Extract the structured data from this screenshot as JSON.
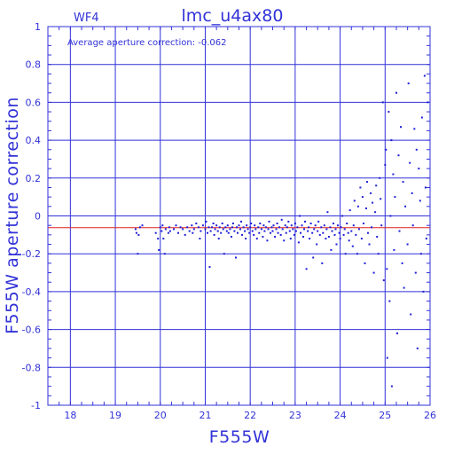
{
  "header": {
    "panel_label": "WF4",
    "title": "lmc_u4ax80"
  },
  "annotation": "Average aperture correction: -0.062",
  "axes": {
    "xlabel": "F555W",
    "ylabel": "F555W aperture correction",
    "xlim": [
      17.5,
      26
    ],
    "ylim": [
      -1,
      1
    ],
    "x_ticks": [
      "18",
      "19",
      "20",
      "21",
      "22",
      "23",
      "24",
      "25",
      "26"
    ],
    "y_ticks": [
      "1",
      "0.8",
      "0.6",
      "0.4",
      "0.2",
      "0",
      "-0.2",
      "-0.4",
      "-0.6",
      "-0.8",
      "-1"
    ]
  },
  "colors": {
    "axis": "#3232d8",
    "points": "#1f1fd8",
    "reference_line": "#e0201e",
    "background": "#ffffff"
  },
  "chart_data": {
    "type": "scatter",
    "title": "lmc_u4ax80",
    "xlabel": "F555W",
    "ylabel": "F555W aperture correction",
    "xlim": [
      17.5,
      26
    ],
    "ylim": [
      -1,
      1
    ],
    "grid": true,
    "reference_line": {
      "y": -0.062
    },
    "series": [
      {
        "points": [
          [
            19.45,
            -0.07
          ],
          [
            19.47,
            -0.09
          ],
          [
            19.5,
            -0.2
          ],
          [
            19.52,
            -0.1
          ],
          [
            19.55,
            -0.06
          ],
          [
            19.6,
            -0.05
          ],
          [
            19.9,
            -0.09
          ],
          [
            19.95,
            -0.12
          ],
          [
            19.97,
            -0.18
          ],
          [
            20.0,
            -0.06
          ],
          [
            20.03,
            -0.08
          ],
          [
            20.05,
            -0.05
          ],
          [
            20.07,
            -0.12
          ],
          [
            20.1,
            -0.2
          ],
          [
            20.12,
            -0.07
          ],
          [
            20.18,
            -0.09
          ],
          [
            20.2,
            -0.06
          ],
          [
            20.22,
            -0.08
          ],
          [
            20.3,
            -0.07
          ],
          [
            20.35,
            -0.05
          ],
          [
            20.4,
            -0.09
          ],
          [
            20.45,
            -0.06
          ],
          [
            20.5,
            -0.07
          ],
          [
            20.55,
            -0.1
          ],
          [
            20.6,
            -0.06
          ],
          [
            20.65,
            -0.08
          ],
          [
            20.7,
            -0.05
          ],
          [
            20.72,
            -0.09
          ],
          [
            20.75,
            -0.07
          ],
          [
            20.8,
            -0.04
          ],
          [
            20.85,
            -0.06
          ],
          [
            20.88,
            -0.12
          ],
          [
            20.9,
            -0.08
          ],
          [
            20.95,
            -0.05
          ],
          [
            21.0,
            -0.07
          ],
          [
            21.02,
            -0.03
          ],
          [
            21.05,
            -0.09
          ],
          [
            21.08,
            -0.06
          ],
          [
            21.1,
            -0.27
          ],
          [
            21.12,
            -0.08
          ],
          [
            21.15,
            -0.06
          ],
          [
            21.18,
            -0.04
          ],
          [
            21.2,
            -0.1
          ],
          [
            21.22,
            -0.07
          ],
          [
            21.25,
            -0.05
          ],
          [
            21.28,
            -0.08
          ],
          [
            21.3,
            -0.12
          ],
          [
            21.32,
            -0.06
          ],
          [
            21.35,
            -0.09
          ],
          [
            21.38,
            -0.04
          ],
          [
            21.4,
            -0.07
          ],
          [
            21.42,
            -0.2
          ],
          [
            21.45,
            -0.06
          ],
          [
            21.48,
            -0.08
          ],
          [
            21.5,
            -0.05
          ],
          [
            21.52,
            -0.09
          ],
          [
            21.55,
            -0.07
          ],
          [
            21.58,
            -0.11
          ],
          [
            21.6,
            -0.06
          ],
          [
            21.62,
            -0.04
          ],
          [
            21.65,
            -0.08
          ],
          [
            21.68,
            -0.22
          ],
          [
            21.7,
            -0.06
          ],
          [
            21.72,
            -0.09
          ],
          [
            21.75,
            -0.05
          ],
          [
            21.78,
            -0.07
          ],
          [
            21.8,
            -0.03
          ],
          [
            21.82,
            -0.1
          ],
          [
            21.85,
            -0.06
          ],
          [
            21.88,
            -0.08
          ],
          [
            21.9,
            -0.12
          ],
          [
            21.92,
            -0.05
          ],
          [
            21.95,
            -0.07
          ],
          [
            21.98,
            -0.09
          ],
          [
            22.0,
            -0.06
          ],
          [
            22.02,
            -0.04
          ],
          [
            22.05,
            -0.08
          ],
          [
            22.08,
            -0.1
          ],
          [
            22.1,
            -0.05
          ],
          [
            22.12,
            -0.07
          ],
          [
            22.15,
            -0.12
          ],
          [
            22.18,
            -0.06
          ],
          [
            22.2,
            -0.09
          ],
          [
            22.22,
            -0.04
          ],
          [
            22.25,
            -0.07
          ],
          [
            22.28,
            -0.11
          ],
          [
            22.3,
            -0.05
          ],
          [
            22.32,
            -0.08
          ],
          [
            22.35,
            -0.06
          ],
          [
            22.38,
            -0.13
          ],
          [
            22.4,
            -0.07
          ],
          [
            22.42,
            -0.03
          ],
          [
            22.45,
            -0.09
          ],
          [
            22.48,
            -0.06
          ],
          [
            22.5,
            -0.08
          ],
          [
            22.52,
            -0.05
          ],
          [
            22.55,
            -0.11
          ],
          [
            22.58,
            -0.07
          ],
          [
            22.6,
            -0.04
          ],
          [
            22.62,
            -0.09
          ],
          [
            22.65,
            -0.06
          ],
          [
            22.68,
            -0.1
          ],
          [
            22.7,
            -0.02
          ],
          [
            22.72,
            -0.07
          ],
          [
            22.75,
            -0.13
          ],
          [
            22.78,
            -0.05
          ],
          [
            22.8,
            -0.09
          ],
          [
            22.82,
            -0.06
          ],
          [
            22.85,
            -0.03
          ],
          [
            22.88,
            -0.08
          ],
          [
            22.9,
            -0.12
          ],
          [
            22.92,
            -0.05
          ],
          [
            22.95,
            -0.07
          ],
          [
            22.98,
            -0.1
          ],
          [
            23.0,
            -0.04
          ],
          [
            23.02,
            -0.08
          ],
          [
            23.05,
            -0.06
          ],
          [
            23.08,
            -0.14
          ],
          [
            23.1,
            0.0
          ],
          [
            23.12,
            -0.09
          ],
          [
            23.15,
            -0.05
          ],
          [
            23.18,
            -0.11
          ],
          [
            23.2,
            -0.07
          ],
          [
            23.22,
            -0.03
          ],
          [
            23.25,
            -0.28
          ],
          [
            23.28,
            -0.08
          ],
          [
            23.3,
            -0.06
          ],
          [
            23.32,
            -0.12
          ],
          [
            23.35,
            -0.04
          ],
          [
            23.38,
            -0.09
          ],
          [
            23.4,
            -0.22
          ],
          [
            23.42,
            -0.07
          ],
          [
            23.45,
            -0.05
          ],
          [
            23.48,
            -0.15
          ],
          [
            23.5,
            -0.08
          ],
          [
            23.52,
            -0.03
          ],
          [
            23.55,
            -0.1
          ],
          [
            23.58,
            -0.06
          ],
          [
            23.6,
            -0.25
          ],
          [
            23.62,
            -0.09
          ],
          [
            23.65,
            -0.05
          ],
          [
            23.68,
            -0.12
          ],
          [
            23.7,
            -0.07
          ],
          [
            23.72,
            0.02
          ],
          [
            23.75,
            -0.11
          ],
          [
            23.78,
            -0.06
          ],
          [
            23.8,
            -0.18
          ],
          [
            23.82,
            -0.08
          ],
          [
            23.85,
            -0.04
          ],
          [
            23.88,
            -0.1
          ],
          [
            23.9,
            -0.07
          ],
          [
            23.92,
            -0.15
          ],
          [
            23.95,
            -0.05
          ],
          [
            23.98,
            -0.09
          ],
          [
            24.0,
            -0.12
          ],
          [
            24.02,
            -0.06
          ],
          [
            24.05,
            0.0
          ],
          [
            24.08,
            -0.1
          ],
          [
            24.1,
            -0.07
          ],
          [
            24.12,
            -0.2
          ],
          [
            24.15,
            -0.04
          ],
          [
            24.18,
            -0.09
          ],
          [
            24.2,
            -0.13
          ],
          [
            24.22,
            0.03
          ],
          [
            24.25,
            -0.08
          ],
          [
            24.28,
            -0.16
          ],
          [
            24.3,
            -0.05
          ],
          [
            24.32,
            0.08
          ],
          [
            24.35,
            -0.1
          ],
          [
            24.38,
            -0.2
          ],
          [
            24.4,
            0.05
          ],
          [
            24.42,
            -0.07
          ],
          [
            24.45,
            0.15
          ],
          [
            24.48,
            -0.12
          ],
          [
            24.5,
            0.1
          ],
          [
            24.52,
            -0.04
          ],
          [
            24.55,
            -0.25
          ],
          [
            24.58,
            0.04
          ],
          [
            24.6,
            0.18
          ],
          [
            24.62,
            -0.09
          ],
          [
            24.65,
            -0.15
          ],
          [
            24.68,
            0.12
          ],
          [
            24.7,
            -0.06
          ],
          [
            24.72,
            0.07
          ],
          [
            24.75,
            -0.3
          ],
          [
            24.78,
            0.02
          ],
          [
            24.8,
            0.16
          ],
          [
            24.82,
            -0.11
          ],
          [
            24.85,
            -0.2
          ],
          [
            24.88,
            0.2
          ],
          [
            24.9,
            0.09
          ],
          [
            24.92,
            -0.05
          ],
          [
            24.95,
            0.6
          ],
          [
            24.97,
            -0.34
          ],
          [
            25.0,
            0.27
          ],
          [
            25.02,
            0.35
          ],
          [
            25.04,
            -0.28
          ],
          [
            25.05,
            -0.75
          ],
          [
            25.08,
            0.55
          ],
          [
            25.1,
            -0.45
          ],
          [
            25.12,
            0.0
          ],
          [
            25.14,
            0.4
          ],
          [
            25.15,
            -0.9
          ],
          [
            25.18,
            0.22
          ],
          [
            25.2,
            -0.18
          ],
          [
            25.22,
            0.1
          ],
          [
            25.25,
            0.65
          ],
          [
            25.27,
            -0.62
          ],
          [
            25.3,
            0.32
          ],
          [
            25.32,
            -0.08
          ],
          [
            25.35,
            0.47
          ],
          [
            25.38,
            -0.25
          ],
          [
            25.4,
            0.18
          ],
          [
            25.42,
            -0.38
          ],
          [
            25.45,
            0.05
          ],
          [
            25.5,
            -0.15
          ],
          [
            25.52,
            0.7
          ],
          [
            25.55,
            0.28
          ],
          [
            25.57,
            -0.52
          ],
          [
            25.6,
            0.12
          ],
          [
            25.62,
            -0.05
          ],
          [
            25.65,
            0.46
          ],
          [
            25.68,
            -0.3
          ],
          [
            25.7,
            0.35
          ],
          [
            25.72,
            -0.7
          ],
          [
            25.75,
            0.25
          ],
          [
            25.78,
            0.08
          ],
          [
            25.8,
            -0.2
          ],
          [
            25.82,
            0.52
          ],
          [
            25.85,
            -0.4
          ],
          [
            25.88,
            0.74
          ],
          [
            25.9,
            0.15
          ],
          [
            25.92,
            -0.12
          ],
          [
            25.95,
            0.6
          ]
        ]
      }
    ]
  }
}
